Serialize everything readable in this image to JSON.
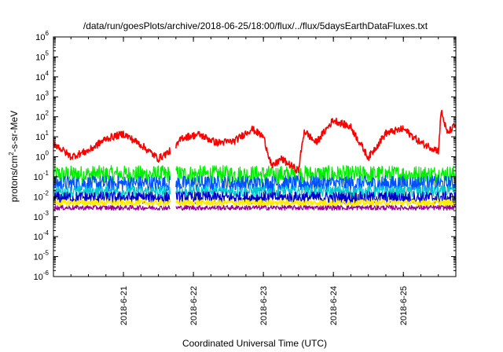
{
  "chart_data": {
    "type": "line",
    "title": "/data/run/goesPlots/archive/2018-06-25/18:00/flux/../flux/5daysEarthDataFluxes.txt",
    "xlabel": "Coordinated Universal Time (UTC)",
    "ylabel": {
      "pre": "protons/cm",
      "sup": "2",
      "post": "-s-sr-MeV"
    },
    "yscale": "log",
    "ylim": [
      1e-06,
      1000000.0
    ],
    "xlim": [
      "2018-06-20 00:00",
      "2018-06-25 18:00"
    ],
    "yticks": [
      {
        "value": 1000000.0,
        "base": "10",
        "exp": "6"
      },
      {
        "value": 100000.0,
        "base": "10",
        "exp": "5"
      },
      {
        "value": 10000.0,
        "base": "10",
        "exp": "4"
      },
      {
        "value": 1000.0,
        "base": "10",
        "exp": "3"
      },
      {
        "value": 100.0,
        "base": "10",
        "exp": "2"
      },
      {
        "value": 10.0,
        "base": "10",
        "exp": "1"
      },
      {
        "value": 1.0,
        "base": "10",
        "exp": "0"
      },
      {
        "value": 0.1,
        "base": "10",
        "exp": "-1"
      },
      {
        "value": 0.01,
        "base": "10",
        "exp": "-2"
      },
      {
        "value": 0.001,
        "base": "10",
        "exp": "-3"
      },
      {
        "value": 0.0001,
        "base": "10",
        "exp": "-4"
      },
      {
        "value": 1e-05,
        "base": "10",
        "exp": "-5"
      },
      {
        "value": 1e-06,
        "base": "10",
        "exp": "-6"
      }
    ],
    "xticks": [
      {
        "t": "2018-06-21 00:00",
        "label": "2018-6-21"
      },
      {
        "t": "2018-06-22 00:00",
        "label": "2018-6-22"
      },
      {
        "t": "2018-06-23 00:00",
        "label": "2018-6-23"
      },
      {
        "t": "2018-06-24 00:00",
        "label": "2018-6-24"
      },
      {
        "t": "2018-06-25 00:00",
        "label": "2018-6-25"
      }
    ],
    "grid": false,
    "gap": [
      "2018-06-21 16:00",
      "2018-06-21 18:00"
    ],
    "series": [
      {
        "color": "#ff0000",
        "width": 1.6,
        "noise": 0.18,
        "points": [
          [
            "2018-06-20 00:00",
            5
          ],
          [
            "2018-06-20 06:00",
            1.0
          ],
          [
            "2018-06-20 12:00",
            2
          ],
          [
            "2018-06-20 18:00",
            8
          ],
          [
            "2018-06-21 00:00",
            14
          ],
          [
            "2018-06-21 06:00",
            4
          ],
          [
            "2018-06-21 12:00",
            0.8
          ],
          [
            "2018-06-21 18:00",
            3
          ],
          [
            "2018-06-21 20:00",
            9
          ],
          [
            "2018-06-22 02:00",
            13
          ],
          [
            "2018-06-22 08:00",
            5
          ],
          [
            "2018-06-22 14:00",
            6
          ],
          [
            "2018-06-22 20:00",
            25
          ],
          [
            "2018-06-23 00:00",
            10
          ],
          [
            "2018-06-23 03:00",
            0.3
          ],
          [
            "2018-06-23 06:00",
            0.8
          ],
          [
            "2018-06-23 12:00",
            0.2
          ],
          [
            "2018-06-23 14:00",
            20
          ],
          [
            "2018-06-23 18:00",
            5
          ],
          [
            "2018-06-24 00:00",
            70
          ],
          [
            "2018-06-24 06:00",
            30
          ],
          [
            "2018-06-24 12:00",
            0.9
          ],
          [
            "2018-06-24 18:00",
            15
          ],
          [
            "2018-06-25 00:00",
            25
          ],
          [
            "2018-06-25 06:00",
            5
          ],
          [
            "2018-06-25 12:00",
            2
          ],
          [
            "2018-06-25 13:00",
            200
          ],
          [
            "2018-06-25 15:00",
            15
          ],
          [
            "2018-06-25 18:00",
            40
          ]
        ]
      },
      {
        "color": "#00ee00",
        "width": 1.2,
        "noise": 0.45,
        "points": [
          [
            "2018-06-20 00:00",
            0.13
          ],
          [
            "2018-06-25 18:00",
            0.13
          ]
        ]
      },
      {
        "color": "#0050ff",
        "width": 1.2,
        "noise": 0.4,
        "points": [
          [
            "2018-06-20 00:00",
            0.045
          ],
          [
            "2018-06-25 18:00",
            0.045
          ]
        ]
      },
      {
        "color": "#00cccc",
        "width": 1.2,
        "noise": 0.3,
        "points": [
          [
            "2018-06-20 00:00",
            0.018
          ],
          [
            "2018-06-25 18:00",
            0.018
          ]
        ]
      },
      {
        "color": "#0000cc",
        "width": 1.2,
        "noise": 0.3,
        "points": [
          [
            "2018-06-20 00:00",
            0.009
          ],
          [
            "2018-06-25 18:00",
            0.009
          ]
        ]
      },
      {
        "color": "#ffee00",
        "width": 1.6,
        "noise": 0.15,
        "points": [
          [
            "2018-06-20 00:00",
            0.005
          ],
          [
            "2018-06-25 18:00",
            0.005
          ]
        ]
      },
      {
        "color": "#990099",
        "width": 1.2,
        "noise": 0.12,
        "points": [
          [
            "2018-06-20 00:00",
            0.0028
          ],
          [
            "2018-06-25 18:00",
            0.0028
          ]
        ]
      }
    ]
  }
}
